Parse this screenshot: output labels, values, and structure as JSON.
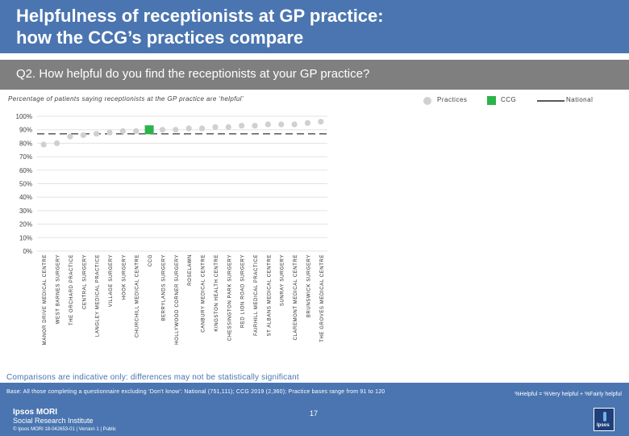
{
  "header": {
    "title": "Helpfulness of receptionists at GP practice:\nhow the CCG’s practices compare"
  },
  "question": "Q2. How helpful do you find the receptionists at your GP practice?",
  "subtitle": "Percentage of patients saying receptionists at the GP practice are ‘helpful’",
  "legend": {
    "practices": "Practices",
    "ccg": "CCG",
    "national": "National"
  },
  "colors": {
    "header": "#4a75b0",
    "question_bar": "#7f7f7f",
    "practice_marker": "#d0d0d0",
    "ccg_marker": "#2db34a",
    "national_line": "#595959",
    "axis_text": "#404040"
  },
  "chart_data": {
    "type": "scatter",
    "title": "Percentage of patients saying receptionists at the GP practice are ‘helpful’",
    "ylim": [
      0,
      100
    ],
    "yticks": [
      0,
      10,
      20,
      30,
      40,
      50,
      60,
      70,
      80,
      90,
      100
    ],
    "ytick_labels": [
      "0%",
      "10%",
      "20%",
      "30%",
      "40%",
      "50%",
      "60%",
      "70%",
      "80%",
      "90%",
      "100%"
    ],
    "categories": [
      "MANOR DRIVE MEDICAL CENTRE",
      "WEST BARNES SURGERY",
      "THE ORCHARD PRACTICE",
      "CENTRAL SURGERY",
      "LANGLEY MEDICAL PRACTICE",
      "VILLAGE SURGERY",
      "HOOK SURGERY",
      "CHURCHILL MEDICAL CENTRE",
      "CCG",
      "BERRYLANDS SURGERY",
      "HOLLYWOOD CORNER SURGERY",
      "ROSELAWN",
      "CANBURY MEDICAL CENTRE",
      "KINGSTON HEALTH CENTRE",
      "CHESSINGTON PARK SURGERY",
      "RED LION ROAD SURGERY",
      "FAIRHILL MEDICAL PRACTICE",
      "ST ALBANS MEDICAL CENTRE",
      "SUNRAY SURGERY",
      "CLAREMONT MEDICAL CENTRE",
      "BRUNSWICK SURGERY",
      "THE GROVES MEDICAL CENTRE"
    ],
    "values": [
      79,
      80,
      85,
      86,
      87,
      88,
      89,
      89,
      90,
      90,
      90,
      91,
      91,
      92,
      92,
      93,
      93,
      94,
      94,
      94,
      95,
      96
    ],
    "highlight_category": "CCG",
    "national_value": 87,
    "grid": true,
    "legend_position": "top-right"
  },
  "note": "Comparisons are indicative only: differences may not be statistically significant",
  "footer": {
    "base": "Base: All those completing a questionnaire excluding ‘Don’t know’: National (751,111); CCG 2019 (2,360); Practice bases range from 91 to 120",
    "formula": "%Helpful = %Very helpful + %Fairly helpful",
    "page_number": "17",
    "logo_line1": "Ipsos MORI",
    "logo_line2": "Social Research Institute",
    "copyright": "© Ipsos MORI     18-042653-01 | Version 1 | Public",
    "ipsos_label": "Ipsos"
  }
}
